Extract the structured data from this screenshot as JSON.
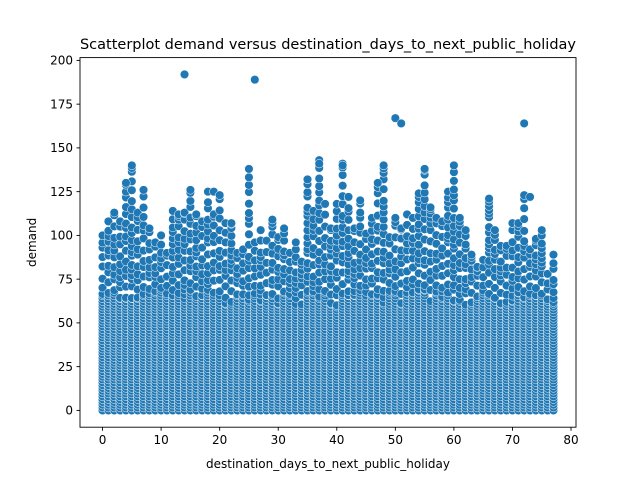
{
  "chart_data": {
    "type": "scatter",
    "title": "Scatterplot demand versus destination_days_to_next_public_holiday",
    "xlabel": "destination_days_to_next_public_holiday",
    "ylabel": "demand",
    "xlim": [
      -3.85,
      80.85
    ],
    "ylim": [
      -9.6,
      201.6
    ],
    "xticks": [
      0,
      10,
      20,
      30,
      40,
      50,
      60,
      70,
      80
    ],
    "yticks": [
      0,
      25,
      50,
      75,
      100,
      125,
      150,
      175,
      200
    ],
    "grid": false,
    "color": "#1f77b4",
    "envelope": [
      [
        0,
        100
      ],
      [
        1,
        108
      ],
      [
        2,
        113
      ],
      [
        3,
        108
      ],
      [
        4,
        130
      ],
      [
        5,
        140
      ],
      [
        6,
        113
      ],
      [
        7,
        126
      ],
      [
        8,
        104
      ],
      [
        9,
        96
      ],
      [
        10,
        100
      ],
      [
        11,
        90
      ],
      [
        12,
        114
      ],
      [
        13,
        112
      ],
      [
        14,
        113
      ],
      [
        15,
        126
      ],
      [
        16,
        112
      ],
      [
        17,
        108
      ],
      [
        18,
        125
      ],
      [
        19,
        112
      ],
      [
        20,
        123
      ],
      [
        21,
        107
      ],
      [
        22,
        107
      ],
      [
        23,
        90
      ],
      [
        24,
        92
      ],
      [
        25,
        138
      ],
      [
        26,
        96
      ],
      [
        27,
        103
      ],
      [
        28,
        97
      ],
      [
        29,
        109
      ],
      [
        30,
        99
      ],
      [
        31,
        104
      ],
      [
        32,
        90
      ],
      [
        33,
        96
      ],
      [
        34,
        85
      ],
      [
        35,
        132
      ],
      [
        36,
        114
      ],
      [
        37,
        143
      ],
      [
        38,
        118
      ],
      [
        39,
        104
      ],
      [
        40,
        118
      ],
      [
        41,
        141
      ],
      [
        42,
        122
      ],
      [
        43,
        104
      ],
      [
        44,
        120
      ],
      [
        45,
        101
      ],
      [
        46,
        110
      ],
      [
        47,
        130
      ],
      [
        48,
        140
      ],
      [
        49,
        99
      ],
      [
        50,
        110
      ],
      [
        51,
        104
      ],
      [
        52,
        112
      ],
      [
        53,
        110
      ],
      [
        54,
        124
      ],
      [
        55,
        138
      ],
      [
        56,
        116
      ],
      [
        57,
        110
      ],
      [
        58,
        108
      ],
      [
        59,
        125
      ],
      [
        60,
        140
      ],
      [
        61,
        110
      ],
      [
        62,
        103
      ],
      [
        63,
        89
      ],
      [
        64,
        82
      ],
      [
        65,
        86
      ],
      [
        66,
        121
      ],
      [
        67,
        103
      ],
      [
        68,
        94
      ],
      [
        69,
        94
      ],
      [
        70,
        107
      ],
      [
        71,
        107
      ],
      [
        72,
        123
      ],
      [
        73,
        92
      ],
      [
        74,
        98
      ],
      [
        75,
        103
      ],
      [
        76,
        78
      ],
      [
        77,
        89
      ]
    ],
    "outliers": [
      [
        14,
        192
      ],
      [
        26,
        189
      ],
      [
        50,
        167
      ],
      [
        51,
        164
      ],
      [
        72,
        164
      ],
      [
        37,
        141
      ],
      [
        48,
        140
      ],
      [
        41,
        140
      ],
      [
        60,
        140
      ],
      [
        55,
        138
      ],
      [
        25,
        138
      ],
      [
        35,
        132
      ],
      [
        47,
        130
      ],
      [
        4,
        130
      ],
      [
        73,
        122
      ],
      [
        42,
        122
      ],
      [
        66,
        121
      ],
      [
        44,
        120
      ],
      [
        19,
        125
      ],
      [
        20,
        123
      ]
    ]
  }
}
